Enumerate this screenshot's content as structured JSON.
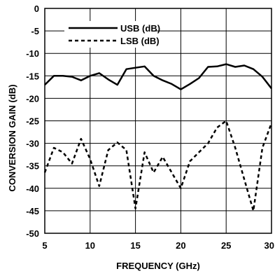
{
  "chart_data": {
    "type": "line",
    "title": "",
    "xlabel": "FREQUENCY (GHz)",
    "ylabel": "CONVERSION GAIN (dB)",
    "xlim": [
      5,
      30
    ],
    "ylim": [
      -50,
      0
    ],
    "x_ticks": [
      "5",
      "10",
      "15",
      "20",
      "25",
      "30"
    ],
    "y_ticks": [
      "0",
      "-5",
      "-10",
      "-15",
      "-20",
      "-25",
      "-30",
      "-35",
      "-40",
      "-45",
      "-50"
    ],
    "grid": true,
    "legend_position": "top-left",
    "series": [
      {
        "name": "USB (dB)",
        "line_style": "solid",
        "color": "#000000",
        "points": [
          [
            5,
            -17
          ],
          [
            6,
            -15
          ],
          [
            7,
            -15
          ],
          [
            8,
            -15.2
          ],
          [
            9,
            -16
          ],
          [
            10,
            -15
          ],
          [
            11,
            -14.4
          ],
          [
            12,
            -15.8
          ],
          [
            13,
            -17
          ],
          [
            14,
            -13.5
          ],
          [
            15,
            -13.2
          ],
          [
            16,
            -12.9
          ],
          [
            17,
            -15
          ],
          [
            18,
            -16
          ],
          [
            19,
            -16.8
          ],
          [
            20,
            -18
          ],
          [
            21,
            -16.8
          ],
          [
            22,
            -15.5
          ],
          [
            23,
            -13
          ],
          [
            24,
            -12.9
          ],
          [
            25,
            -12.4
          ],
          [
            26,
            -13
          ],
          [
            27,
            -12.7
          ],
          [
            28,
            -13.5
          ],
          [
            29,
            -15.2
          ],
          [
            30,
            -17.8
          ]
        ]
      },
      {
        "name": "LSB (dB)",
        "line_style": "dashed",
        "color": "#000000",
        "points": [
          [
            5,
            -36.5
          ],
          [
            6,
            -31
          ],
          [
            7,
            -32
          ],
          [
            8,
            -34.5
          ],
          [
            9,
            -29
          ],
          [
            10,
            -33.5
          ],
          [
            11,
            -39.5
          ],
          [
            12,
            -31.5
          ],
          [
            13,
            -29.8
          ],
          [
            14,
            -31.5
          ],
          [
            15,
            -44.5
          ],
          [
            16,
            -32
          ],
          [
            17,
            -36.5
          ],
          [
            18,
            -33
          ],
          [
            19,
            -36.5
          ],
          [
            20,
            -40
          ],
          [
            21,
            -34
          ],
          [
            22,
            -32
          ],
          [
            23,
            -30
          ],
          [
            24,
            -26.5
          ],
          [
            25,
            -25
          ],
          [
            26,
            -31
          ],
          [
            27,
            -38
          ],
          [
            28,
            -45
          ],
          [
            29,
            -31
          ],
          [
            30,
            -25.5
          ]
        ]
      }
    ]
  }
}
